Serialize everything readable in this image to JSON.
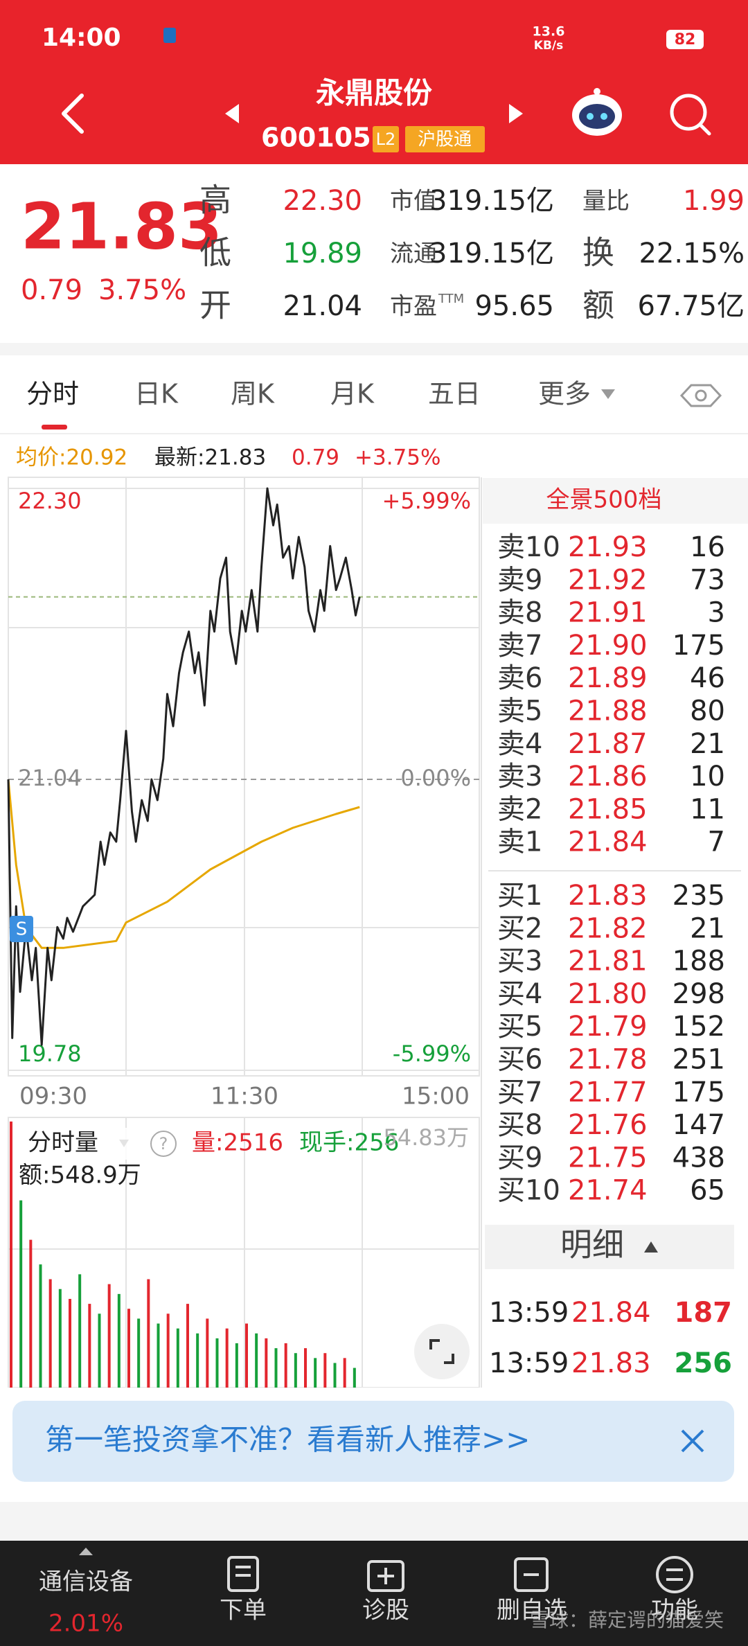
{
  "status_bar": {
    "time": "14:00",
    "speed": "13.6",
    "speed_unit": "KB/s",
    "battery": "82"
  },
  "header": {
    "name": "永鼎股份",
    "code": "600105",
    "badges": [
      "L2",
      "沪股通"
    ]
  },
  "quote": {
    "price": "21.83",
    "change": "0.79",
    "change_pct": "3.75%",
    "fields": [
      {
        "label": "高",
        "value": "22.30",
        "color": "#e3262e"
      },
      {
        "label": "低",
        "value": "19.89",
        "color": "#16a03a"
      },
      {
        "label": "开",
        "value": "21.04",
        "color": "#222222"
      },
      {
        "label": "市值",
        "value": "319.15亿",
        "color": "#222222"
      },
      {
        "label": "流通",
        "value": "319.15亿",
        "color": "#222222"
      },
      {
        "label": "市盈",
        "sup": "TTM",
        "value": "95.65",
        "color": "#222222"
      },
      {
        "label": "量比",
        "value": "1.99",
        "color": "#e3262e"
      },
      {
        "label": "换",
        "value": "22.15%",
        "color": "#222222"
      },
      {
        "label": "额",
        "value": "67.75亿",
        "color": "#222222"
      }
    ]
  },
  "tabs": [
    "分时",
    "日K",
    "周K",
    "月K",
    "五日",
    "更多"
  ],
  "chart_info": {
    "avg": "均价:20.92",
    "latest": "最新:21.83",
    "change": "0.79",
    "change_pct": "+3.75%"
  },
  "chart": {
    "ylim": [
      19.78,
      22.3
    ],
    "yticks": [
      {
        "value": 22.3,
        "label": "22.30"
      },
      {
        "value": 21.04,
        "label": "21.04"
      },
      {
        "value": 19.78,
        "label": "19.78"
      }
    ],
    "pct_labels": [
      "+5.99%",
      "0.00%",
      "-5.99%"
    ],
    "x_labels": [
      "09:30",
      "11:30",
      "15:00"
    ],
    "last_price": 21.83,
    "marker": "S",
    "line_color": "#222222",
    "avg_color": "#e6a700",
    "times": [
      "09:30",
      "09:32",
      "09:34",
      "09:36",
      "09:39",
      "09:42",
      "09:44",
      "09:47",
      "09:50",
      "09:52",
      "09:55",
      "09:58",
      "10:00",
      "10:03",
      "10:08",
      "10:14",
      "10:17",
      "10:19",
      "10:22",
      "10:25",
      "10:27",
      "10:30",
      "10:33",
      "10:35",
      "10:38",
      "10:41",
      "10:43",
      "10:46",
      "10:49",
      "10:51",
      "10:54",
      "10:57",
      "10:59",
      "11:02",
      "11:05",
      "11:07",
      "11:10",
      "11:13",
      "11:15",
      "11:18",
      "11:21",
      "11:23",
      "11:26",
      "11:29",
      "13:01",
      "13:04",
      "13:07",
      "13:09",
      "13:12",
      "13:15",
      "13:17",
      "13:20",
      "13:23",
      "13:25",
      "13:28",
      "13:31",
      "13:33",
      "13:36",
      "13:39",
      "13:41",
      "13:44",
      "13:47",
      "13:49",
      "13:52",
      "13:55",
      "13:57",
      "13:59"
    ],
    "prices": [
      21.04,
      19.92,
      20.49,
      20.12,
      20.4,
      20.17,
      20.31,
      19.89,
      20.31,
      20.17,
      20.4,
      20.35,
      20.44,
      20.38,
      20.49,
      20.54,
      20.77,
      20.67,
      20.81,
      20.77,
      20.95,
      21.25,
      20.9,
      20.77,
      20.95,
      20.86,
      21.04,
      20.95,
      21.13,
      21.41,
      21.27,
      21.5,
      21.59,
      21.68,
      21.5,
      21.59,
      21.36,
      21.77,
      21.68,
      21.91,
      22.0,
      21.68,
      21.54,
      21.77,
      21.68,
      21.86,
      21.68,
      21.96,
      22.3,
      22.14,
      22.23,
      22.0,
      22.05,
      21.91,
      22.09,
      21.96,
      21.77,
      21.68,
      21.86,
      21.77,
      22.05,
      21.86,
      21.91,
      22.0,
      21.86,
      21.75,
      21.83
    ],
    "avg_times": [
      "09:30",
      "09:34",
      "09:39",
      "09:47",
      "09:58",
      "10:25",
      "10:30",
      "10:51",
      "11:13",
      "13:09",
      "13:25",
      "13:47",
      "13:59"
    ],
    "avg_prices": [
      21.04,
      20.67,
      20.4,
      20.31,
      20.31,
      20.34,
      20.42,
      20.51,
      20.65,
      20.77,
      20.83,
      20.89,
      20.92
    ]
  },
  "volume": {
    "label": "分时量",
    "vol": "量:2516",
    "hand": "现手:256",
    "amount": "额:548.9万",
    "max_label": "54.83万",
    "max": 548300,
    "colors": [
      "#e3262e",
      "#16a03a"
    ],
    "times": [
      "09:30",
      "09:35",
      "09:40",
      "09:45",
      "09:50",
      "09:55",
      "10:00",
      "10:05",
      "10:10",
      "10:15",
      "10:20",
      "10:25",
      "10:30",
      "10:35",
      "10:40",
      "10:45",
      "10:50",
      "10:55",
      "11:00",
      "11:05",
      "11:10",
      "11:15",
      "11:20",
      "11:25",
      "13:00",
      "13:05",
      "13:10",
      "13:15",
      "13:20",
      "13:25",
      "13:30",
      "13:35",
      "13:40",
      "13:45",
      "13:50",
      "13:55"
    ],
    "values": [
      540000,
      380000,
      300000,
      250000,
      220000,
      200000,
      180000,
      230000,
      170000,
      150000,
      210000,
      190000,
      160000,
      140000,
      220000,
      130000,
      150000,
      120000,
      170000,
      110000,
      140000,
      100000,
      120000,
      90000,
      130000,
      110000,
      100000,
      80000,
      90000,
      70000,
      80000,
      60000,
      70000,
      50000,
      60000,
      40000
    ]
  },
  "order_book": {
    "title": "全景500档",
    "asks": [
      {
        "label": "卖10",
        "price": "21.93",
        "volume": 16
      },
      {
        "label": "卖9",
        "price": "21.92",
        "volume": 73
      },
      {
        "label": "卖8",
        "price": "21.91",
        "volume": 3
      },
      {
        "label": "卖7",
        "price": "21.90",
        "volume": 175
      },
      {
        "label": "卖6",
        "price": "21.89",
        "volume": 46
      },
      {
        "label": "卖5",
        "price": "21.88",
        "volume": 80
      },
      {
        "label": "卖4",
        "price": "21.87",
        "volume": 21
      },
      {
        "label": "卖3",
        "price": "21.86",
        "volume": 10
      },
      {
        "label": "卖2",
        "price": "21.85",
        "volume": 11
      },
      {
        "label": "卖1",
        "price": "21.84",
        "volume": 7
      }
    ],
    "bids": [
      {
        "label": "买1",
        "price": "21.83",
        "volume": 235
      },
      {
        "label": "买2",
        "price": "21.82",
        "volume": 21
      },
      {
        "label": "买3",
        "price": "21.81",
        "volume": 188
      },
      {
        "label": "买4",
        "price": "21.80",
        "volume": 298
      },
      {
        "label": "买5",
        "price": "21.79",
        "volume": 152
      },
      {
        "label": "买6",
        "price": "21.78",
        "volume": 251
      },
      {
        "label": "买7",
        "price": "21.77",
        "volume": 175
      },
      {
        "label": "买8",
        "price": "21.76",
        "volume": 147
      },
      {
        "label": "买9",
        "price": "21.75",
        "volume": 438
      },
      {
        "label": "买10",
        "price": "21.74",
        "volume": 65
      }
    ]
  },
  "details": {
    "button": "明细",
    "rows": [
      {
        "time": "13:59",
        "price": "21.84",
        "volume": 187,
        "color": "#e3262e"
      },
      {
        "time": "13:59",
        "price": "21.83",
        "volume": 256,
        "color": "#16a03a"
      }
    ]
  },
  "banner": {
    "text": "第一笔投资拿不准？看看新人推荐>>"
  },
  "nav": [
    {
      "label": "通信设备",
      "sub": "2.01%"
    },
    {
      "label": "下单"
    },
    {
      "label": "诊股"
    },
    {
      "label": "删自选"
    },
    {
      "label": "功能"
    }
  ],
  "watermark": "雪球：薛定谔的猫爱笑"
}
